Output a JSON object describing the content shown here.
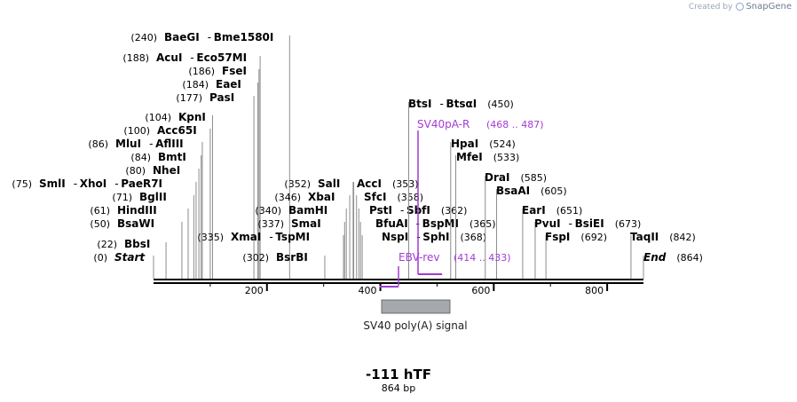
{
  "watermark": {
    "prefix": "Created by",
    "brand": "SnapGene"
  },
  "sequence": {
    "name": "-111 hTF",
    "length_label": "864 bp",
    "length": 864
  },
  "axis": {
    "ticks": [
      "200",
      "400",
      "600",
      "800"
    ]
  },
  "features": [
    {
      "name": "SV40 poly(A) signal",
      "start": 400,
      "end": 522,
      "color": "#a5a8ad"
    }
  ],
  "primers": [
    {
      "name": "SV40pA-R",
      "pos": "(468 .. 487)",
      "start": 468,
      "end": 487,
      "dir": "reverse"
    },
    {
      "name": "EBV-rev",
      "pos": "(414 .. 433)",
      "start": 414,
      "end": 433,
      "dir": "forward"
    }
  ],
  "sites": [
    {
      "cut": 240,
      "labels": [
        {
          "pos": "(240)",
          "parts": [
            "BaeGI",
            "Bme1580I"
          ]
        }
      ]
    },
    {
      "cut": 188,
      "labels": [
        {
          "pos": "(188)",
          "parts": [
            "AcuI",
            "Eco57MI"
          ]
        }
      ]
    },
    {
      "cut": 186,
      "labels": [
        {
          "pos": "(186)",
          "parts": [
            "FseI"
          ]
        }
      ]
    },
    {
      "cut": 184,
      "labels": [
        {
          "pos": "(184)",
          "parts": [
            "EaeI"
          ]
        }
      ]
    },
    {
      "cut": 177,
      "labels": [
        {
          "pos": "(177)",
          "parts": [
            "PasI"
          ]
        }
      ]
    },
    {
      "cut": 104,
      "labels": [
        {
          "pos": "(104)",
          "parts": [
            "KpnI"
          ]
        }
      ]
    },
    {
      "cut": 100,
      "labels": [
        {
          "pos": "(100)",
          "parts": [
            "Acc65I"
          ]
        }
      ]
    },
    {
      "cut": 86,
      "labels": [
        {
          "pos": "(86)",
          "parts": [
            "MluI",
            "AflIII"
          ]
        }
      ]
    },
    {
      "cut": 84,
      "labels": [
        {
          "pos": "(84)",
          "parts": [
            "BmtI"
          ]
        }
      ]
    },
    {
      "cut": 80,
      "labels": [
        {
          "pos": "(80)",
          "parts": [
            "NheI"
          ]
        }
      ]
    },
    {
      "cut": 75,
      "labels": [
        {
          "pos": "(75)",
          "parts": [
            "SmlI",
            "XhoI",
            "PaeR7I"
          ]
        }
      ]
    },
    {
      "cut": 71,
      "labels": [
        {
          "pos": "(71)",
          "parts": [
            "BglII"
          ]
        }
      ]
    },
    {
      "cut": 61,
      "labels": [
        {
          "pos": "(61)",
          "parts": [
            "HindIII"
          ]
        }
      ]
    },
    {
      "cut": 50,
      "labels": [
        {
          "pos": "(50)",
          "parts": [
            "BsaWI"
          ]
        }
      ]
    },
    {
      "cut": 22,
      "labels": [
        {
          "pos": "(22)",
          "parts": [
            "BbsI"
          ]
        }
      ]
    },
    {
      "cut": 0,
      "labels": [
        {
          "pos": "(0)",
          "parts": [
            "Start"
          ],
          "italic": true
        }
      ]
    },
    {
      "cut": 335,
      "labels": [
        {
          "pos": "(335)",
          "parts": [
            "XmaI",
            "TspMI"
          ]
        }
      ]
    },
    {
      "cut": 302,
      "labels": [
        {
          "pos": "(302)",
          "parts": [
            "BsrBI"
          ]
        }
      ]
    },
    {
      "cut": 352,
      "labels": [
        {
          "pos": "(352)",
          "parts": [
            "SalI"
          ]
        }
      ]
    },
    {
      "cut": 346,
      "labels": [
        {
          "pos": "(346)",
          "parts": [
            "XbaI"
          ]
        }
      ]
    },
    {
      "cut": 340,
      "labels": [
        {
          "pos": "(340)",
          "parts": [
            "BamHI"
          ]
        }
      ]
    },
    {
      "cut": 337,
      "labels": [
        {
          "pos": "(337)",
          "parts": [
            "SmaI"
          ]
        }
      ]
    },
    {
      "cut": 353,
      "labels": [
        {
          "pos": "(353)",
          "parts": [
            "AccI"
          ]
        }
      ]
    },
    {
      "cut": 358,
      "labels": [
        {
          "pos": "(358)",
          "parts": [
            "SfcI"
          ]
        }
      ]
    },
    {
      "cut": 362,
      "labels": [
        {
          "pos": "(362)",
          "parts": [
            "PstI",
            "SbfI"
          ]
        }
      ]
    },
    {
      "cut": 365,
      "labels": [
        {
          "pos": "(365)",
          "parts": [
            "BfuAI",
            "BspMI"
          ]
        }
      ]
    },
    {
      "cut": 368,
      "labels": [
        {
          "pos": "(368)",
          "parts": [
            "NspI",
            "SphI"
          ]
        }
      ]
    },
    {
      "cut": 450,
      "labels": [
        {
          "pos": "(450)",
          "parts": [
            "BtsI",
            "BtsαI"
          ]
        }
      ]
    },
    {
      "cut": 524,
      "labels": [
        {
          "pos": "(524)",
          "parts": [
            "HpaI"
          ]
        }
      ]
    },
    {
      "cut": 533,
      "labels": [
        {
          "pos": "(533)",
          "parts": [
            "MfeI"
          ]
        }
      ]
    },
    {
      "cut": 585,
      "labels": [
        {
          "pos": "(585)",
          "parts": [
            "DraI"
          ]
        }
      ]
    },
    {
      "cut": 605,
      "labels": [
        {
          "pos": "(605)",
          "parts": [
            "BsaAI"
          ]
        }
      ]
    },
    {
      "cut": 651,
      "labels": [
        {
          "pos": "(651)",
          "parts": [
            "EarI"
          ]
        }
      ]
    },
    {
      "cut": 673,
      "labels": [
        {
          "pos": "(673)",
          "parts": [
            "PvuI",
            "BsiEI"
          ]
        }
      ]
    },
    {
      "cut": 692,
      "labels": [
        {
          "pos": "(692)",
          "parts": [
            "FspI"
          ]
        }
      ]
    },
    {
      "cut": 842,
      "labels": [
        {
          "pos": "(842)",
          "parts": [
            "TaqII"
          ]
        }
      ]
    },
    {
      "cut": 864,
      "labels": [
        {
          "pos": "(864)",
          "parts": [
            "End"
          ],
          "italic": true
        }
      ]
    }
  ]
}
